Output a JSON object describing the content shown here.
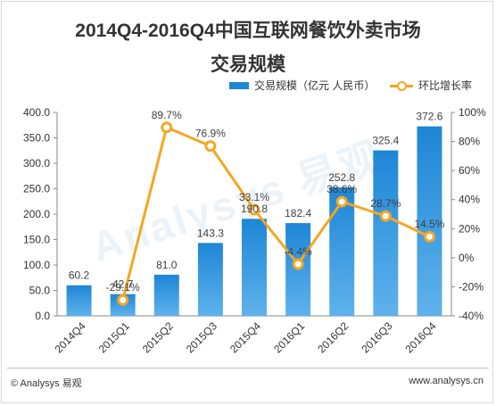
{
  "title_line1": "2014Q4-2016Q4中国互联网餐饮外卖市场",
  "title_line2": "交易规模",
  "legend": {
    "bar_label": "交易规模（亿元 人民币）",
    "line_label": "环比增长率"
  },
  "colors": {
    "bar": "#1e86d6",
    "line": "#f5a623"
  },
  "watermark": "Analysys 易观",
  "footer": {
    "left": "© Analysys 易观",
    "right": "www.analysys.cn"
  },
  "chart_data": {
    "type": "bar",
    "categories": [
      "2014Q4",
      "2015Q1",
      "2015Q2",
      "2015Q3",
      "2015Q4",
      "2016Q1",
      "2016Q2",
      "2016Q3",
      "2016Q4"
    ],
    "series": [
      {
        "name": "交易规模（亿元 人民币）",
        "type": "bar",
        "axis": "left",
        "values": [
          60.2,
          42.7,
          81.0,
          143.3,
          190.8,
          182.4,
          252.8,
          325.4,
          372.6
        ],
        "labels": [
          "60.2",
          "42.7",
          "81.0",
          "143.3",
          "190.8",
          "182.4",
          "252.8",
          "325.4",
          "372.6"
        ]
      },
      {
        "name": "环比增长率",
        "type": "line",
        "axis": "right",
        "values": [
          null,
          -29.1,
          89.7,
          76.9,
          33.1,
          -4.4,
          38.6,
          28.7,
          14.5
        ],
        "labels": [
          "",
          "-29.1%",
          "89.7%",
          "76.9%",
          "33.1%",
          "-4.4%",
          "38.6%",
          "28.7%",
          "14.5%"
        ]
      }
    ],
    "y_left": {
      "ylim": [
        0,
        400
      ],
      "ticks": [
        "0.0",
        "50.0",
        "100.0",
        "150.0",
        "200.0",
        "250.0",
        "300.0",
        "350.0",
        "400.0"
      ]
    },
    "y_right": {
      "ylim": [
        -40,
        100
      ],
      "ticks": [
        "-40%",
        "-20%",
        "0%",
        "20%",
        "40%",
        "60%",
        "80%",
        "100%"
      ]
    },
    "grid": false,
    "legend_position": "top-right"
  }
}
